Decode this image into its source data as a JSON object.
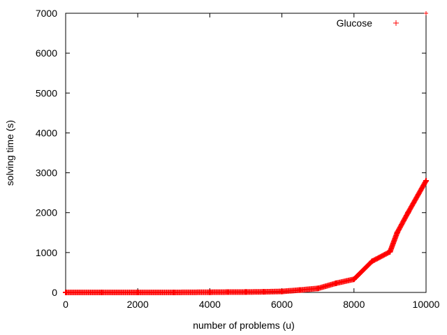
{
  "chart_data": {
    "type": "scatter",
    "xlabel": "number of problems (u)",
    "ylabel": "solving time (s)",
    "xlim": [
      0,
      10000
    ],
    "ylim": [
      0,
      7000
    ],
    "xticks": [
      0,
      2000,
      4000,
      6000,
      8000,
      10000
    ],
    "yticks": [
      0,
      1000,
      2000,
      3000,
      4000,
      5000,
      6000,
      7000
    ],
    "grid": false,
    "legend_position": "top-right",
    "marker": "+",
    "series": [
      {
        "name": "Glucose",
        "color": "#ff0000",
        "x": [
          0,
          1000,
          2000,
          3000,
          4000,
          4500,
          5000,
          5500,
          6000,
          6500,
          7000,
          7500,
          8000,
          8500,
          9000,
          9200,
          9500,
          10000
        ],
        "y": [
          0,
          0,
          0,
          0,
          5,
          8,
          10,
          15,
          25,
          60,
          100,
          230,
          330,
          780,
          1020,
          1500,
          2000,
          2800
        ]
      }
    ]
  }
}
